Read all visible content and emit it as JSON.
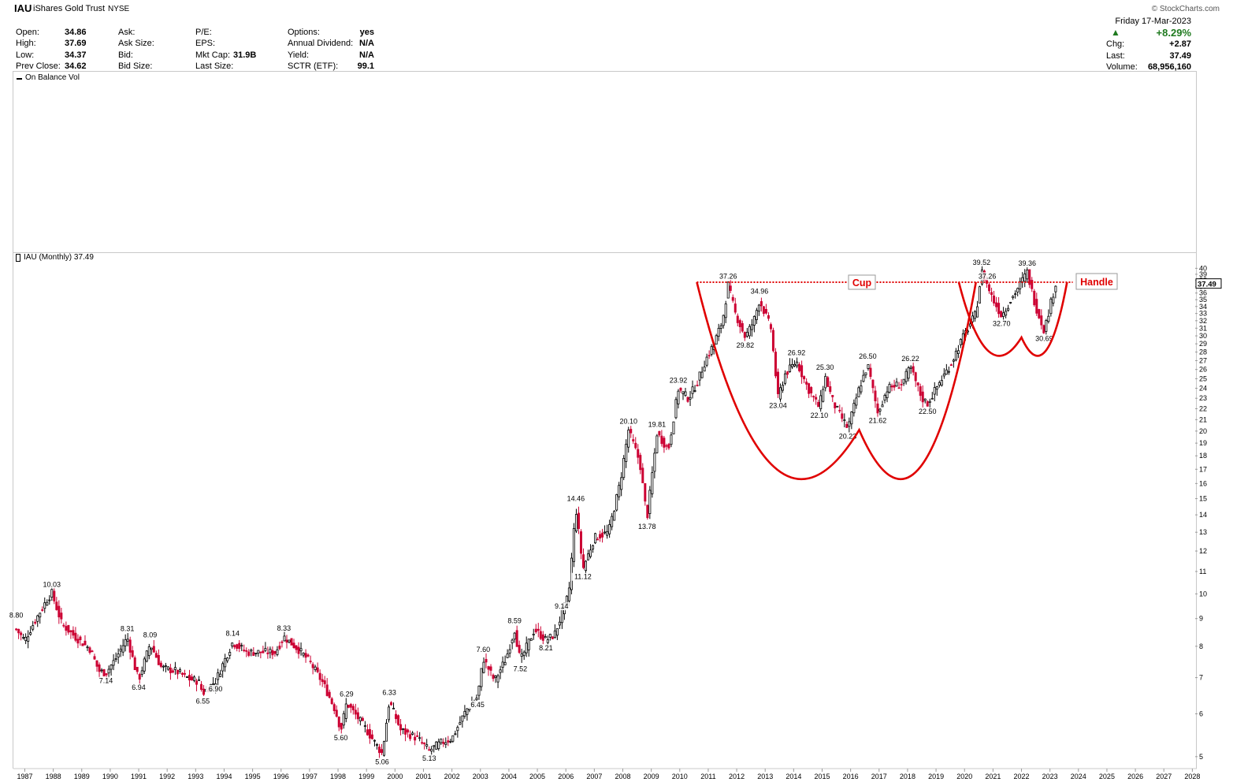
{
  "header": {
    "ticker": "IAU",
    "name": "iShares Gold Trust",
    "exchange": "NYSE",
    "watermark": "© StockCharts.com"
  },
  "quote": {
    "open_label": "Open:",
    "open": "34.86",
    "high_label": "High:",
    "high": "37.69",
    "low_label": "Low:",
    "low": "34.37",
    "prev_label": "Prev Close:",
    "prev": "34.62",
    "ask_label": "Ask:",
    "ask_size_label": "Ask Size:",
    "bid_label": "Bid:",
    "bid_size_label": "Bid Size:",
    "pe_label": "P/E:",
    "eps_label": "EPS:",
    "mktcap_label": "Mkt Cap:",
    "mktcap": "31.9B",
    "lastsize_label": "Last Size:",
    "options_label": "Options:",
    "options": "yes",
    "div_label": "Annual Dividend:",
    "div": "N/A",
    "yield_label": "Yield:",
    "yield": "N/A",
    "sctr_label": "SCTR (ETF):",
    "sctr": "99.1",
    "date": "Friday  17-Mar-2023",
    "pct": "+8.29%",
    "chg_label": "Chg:",
    "chg": "+2.87",
    "last_label": "Last:",
    "last": "37.49",
    "vol_label": "Volume:",
    "vol": "68,956,160"
  },
  "obv_label": "On Balance Vol",
  "price_label": "IAU (Monthly) 37.49",
  "colors": {
    "up": "#000000",
    "down": "#cc0033",
    "pattern": "#e00000",
    "up_arrow": "#1f7a1f"
  },
  "chart_data": {
    "type": "candlestick",
    "title": "IAU (Monthly) 37.49",
    "y_scale": "log",
    "ylim": [
      4.8,
      41
    ],
    "y_ticks": [
      5,
      6,
      7,
      8,
      9,
      10,
      11,
      12,
      13,
      14,
      15,
      16,
      17,
      18,
      19,
      20,
      21,
      22,
      23,
      24,
      25,
      26,
      27,
      28,
      29,
      30,
      31,
      32,
      33,
      34,
      35,
      36,
      37,
      38,
      39,
      40
    ],
    "last_price_tag": "37.49",
    "xlim": [
      1986.6,
      2028.1
    ],
    "x_ticks": [
      "1987",
      "1988",
      "1989",
      "1990",
      "1991",
      "1992",
      "1993",
      "1994",
      "1995",
      "1996",
      "1997",
      "1998",
      "1999",
      "2000",
      "2001",
      "2002",
      "2003",
      "2004",
      "2005",
      "2006",
      "2007",
      "2008",
      "2009",
      "2010",
      "2011",
      "2012",
      "2013",
      "2014",
      "2015",
      "2016",
      "2017",
      "2018",
      "2019",
      "2020",
      "2021",
      "2022",
      "2023",
      "2024",
      "2025",
      "2026",
      "2027",
      "2028"
    ],
    "price_path": [
      [
        1986.7,
        8.6
      ],
      [
        1987.0,
        8.2
      ],
      [
        1987.4,
        9.0
      ],
      [
        1987.8,
        9.8
      ],
      [
        1987.95,
        10.03
      ],
      [
        1988.3,
        8.8
      ],
      [
        1988.8,
        8.3
      ],
      [
        1989.3,
        7.9
      ],
      [
        1989.6,
        7.2
      ],
      [
        1989.85,
        7.14
      ],
      [
        1990.2,
        7.6
      ],
      [
        1990.6,
        8.31
      ],
      [
        1990.9,
        7.2
      ],
      [
        1991.0,
        6.94
      ],
      [
        1991.4,
        8.09
      ],
      [
        1991.8,
        7.3
      ],
      [
        1992.3,
        7.2
      ],
      [
        1992.8,
        6.95
      ],
      [
        1993.1,
        6.9
      ],
      [
        1993.25,
        6.55
      ],
      [
        1993.7,
        6.9
      ],
      [
        1994.0,
        7.5
      ],
      [
        1994.3,
        8.14
      ],
      [
        1994.8,
        7.8
      ],
      [
        1995.4,
        7.8
      ],
      [
        1995.8,
        7.8
      ],
      [
        1996.1,
        8.33
      ],
      [
        1996.6,
        7.9
      ],
      [
        1997.0,
        7.5
      ],
      [
        1997.5,
        6.8
      ],
      [
        1997.9,
        6.1
      ],
      [
        1998.1,
        5.6
      ],
      [
        1998.3,
        6.29
      ],
      [
        1998.8,
        5.8
      ],
      [
        1999.1,
        5.5
      ],
      [
        1999.55,
        5.06
      ],
      [
        1999.8,
        6.33
      ],
      [
        2000.2,
        5.6
      ],
      [
        2000.8,
        5.4
      ],
      [
        2001.2,
        5.13
      ],
      [
        2001.6,
        5.3
      ],
      [
        2002.0,
        5.4
      ],
      [
        2002.5,
        6.1
      ],
      [
        2002.9,
        6.45
      ],
      [
        2003.1,
        7.6
      ],
      [
        2003.5,
        6.9
      ],
      [
        2003.9,
        7.6
      ],
      [
        2004.2,
        8.59
      ],
      [
        2004.4,
        7.52
      ],
      [
        2004.9,
        8.6
      ],
      [
        2005.3,
        8.21
      ],
      [
        2005.6,
        8.4
      ],
      [
        2005.85,
        9.14
      ],
      [
        2006.1,
        10.0
      ],
      [
        2006.35,
        14.46
      ],
      [
        2006.6,
        11.12
      ],
      [
        2007.0,
        12.7
      ],
      [
        2007.5,
        13.0
      ],
      [
        2007.9,
        16.0
      ],
      [
        2008.2,
        20.1
      ],
      [
        2008.6,
        17.5
      ],
      [
        2008.85,
        13.78
      ],
      [
        2009.2,
        19.81
      ],
      [
        2009.6,
        18.5
      ],
      [
        2009.95,
        23.92
      ],
      [
        2010.3,
        23.0
      ],
      [
        2010.6,
        24.5
      ],
      [
        2010.9,
        27.0
      ],
      [
        2011.2,
        29.0
      ],
      [
        2011.5,
        32.0
      ],
      [
        2011.7,
        37.26
      ],
      [
        2011.95,
        33.0
      ],
      [
        2012.3,
        29.82
      ],
      [
        2012.6,
        32.0
      ],
      [
        2012.8,
        34.96
      ],
      [
        2013.2,
        31.0
      ],
      [
        2013.45,
        23.04
      ],
      [
        2013.7,
        25.5
      ],
      [
        2014.1,
        26.92
      ],
      [
        2014.5,
        24.0
      ],
      [
        2014.9,
        22.1
      ],
      [
        2015.1,
        25.3
      ],
      [
        2015.4,
        22.5
      ],
      [
        2015.9,
        20.23
      ],
      [
        2016.3,
        24.0
      ],
      [
        2016.6,
        26.5
      ],
      [
        2016.95,
        21.62
      ],
      [
        2017.3,
        24.0
      ],
      [
        2017.8,
        24.5
      ],
      [
        2018.1,
        26.22
      ],
      [
        2018.5,
        23.0
      ],
      [
        2018.7,
        22.5
      ],
      [
        2019.1,
        24.5
      ],
      [
        2019.5,
        26.5
      ],
      [
        2019.9,
        29.5
      ],
      [
        2020.4,
        33.0
      ],
      [
        2020.6,
        39.52
      ],
      [
        2020.8,
        37.26
      ],
      [
        2021.0,
        35.0
      ],
      [
        2021.3,
        32.7
      ],
      [
        2021.7,
        35.5
      ],
      [
        2022.2,
        39.36
      ],
      [
        2022.5,
        34.0
      ],
      [
        2022.8,
        30.69
      ],
      [
        2023.0,
        34.0
      ],
      [
        2023.2,
        37.49
      ]
    ],
    "annotations": [
      {
        "label": "37.26",
        "x": 2011.7,
        "y": 37.26,
        "pos": "above"
      },
      {
        "label": "34.96",
        "x": 2012.8,
        "y": 34.96,
        "pos": "above"
      },
      {
        "label": "29.82",
        "x": 2012.3,
        "y": 29.82,
        "pos": "below"
      },
      {
        "label": "23.92",
        "x": 2009.95,
        "y": 23.92,
        "pos": "above"
      },
      {
        "label": "20.10",
        "x": 2008.2,
        "y": 20.1,
        "pos": "above"
      },
      {
        "label": "19.81",
        "x": 2009.2,
        "y": 19.81,
        "pos": "above"
      },
      {
        "label": "13.78",
        "x": 2008.85,
        "y": 13.78,
        "pos": "below"
      },
      {
        "label": "14.46",
        "x": 2006.35,
        "y": 14.46,
        "pos": "above"
      },
      {
        "label": "11.12",
        "x": 2006.6,
        "y": 11.12,
        "pos": "below"
      },
      {
        "label": "9.14",
        "x": 2005.85,
        "y": 9.14,
        "pos": "above"
      },
      {
        "label": "8.21",
        "x": 2005.3,
        "y": 8.21,
        "pos": "below"
      },
      {
        "label": "8.59",
        "x": 2004.2,
        "y": 8.59,
        "pos": "above"
      },
      {
        "label": "7.52",
        "x": 2004.4,
        "y": 7.52,
        "pos": "below"
      },
      {
        "label": "7.60",
        "x": 2003.1,
        "y": 7.6,
        "pos": "above"
      },
      {
        "label": "6.45",
        "x": 2002.9,
        "y": 6.45,
        "pos": "below"
      },
      {
        "label": "6.33",
        "x": 1999.8,
        "y": 6.33,
        "pos": "above"
      },
      {
        "label": "5.13",
        "x": 2001.2,
        "y": 5.13,
        "pos": "below"
      },
      {
        "label": "5.06",
        "x": 1999.55,
        "y": 5.06,
        "pos": "below"
      },
      {
        "label": "6.29",
        "x": 1998.3,
        "y": 6.29,
        "pos": "above"
      },
      {
        "label": "5.60",
        "x": 1998.1,
        "y": 5.6,
        "pos": "below"
      },
      {
        "label": "8.33",
        "x": 1996.1,
        "y": 8.33,
        "pos": "above"
      },
      {
        "label": "8.14",
        "x": 1994.3,
        "y": 8.14,
        "pos": "above"
      },
      {
        "label": "6.90",
        "x": 1993.7,
        "y": 6.9,
        "pos": "below"
      },
      {
        "label": "6.55",
        "x": 1993.25,
        "y": 6.55,
        "pos": "below"
      },
      {
        "label": "8.09",
        "x": 1991.4,
        "y": 8.09,
        "pos": "above"
      },
      {
        "label": "8.31",
        "x": 1990.6,
        "y": 8.31,
        "pos": "above"
      },
      {
        "label": "7.14",
        "x": 1989.85,
        "y": 7.14,
        "pos": "below"
      },
      {
        "label": "6.94",
        "x": 1991.0,
        "y": 6.94,
        "pos": "below"
      },
      {
        "label": "10.03",
        "x": 1987.95,
        "y": 10.03,
        "pos": "above"
      },
      {
        "label": "8.80",
        "x": 1986.7,
        "y": 8.8,
        "pos": "above"
      },
      {
        "label": "23.04",
        "x": 2013.45,
        "y": 23.04,
        "pos": "below"
      },
      {
        "label": "26.92",
        "x": 2014.1,
        "y": 26.92,
        "pos": "above"
      },
      {
        "label": "25.30",
        "x": 2015.1,
        "y": 25.3,
        "pos": "above"
      },
      {
        "label": "22.10",
        "x": 2014.9,
        "y": 22.1,
        "pos": "below"
      },
      {
        "label": "20.23",
        "x": 2015.9,
        "y": 20.23,
        "pos": "below"
      },
      {
        "label": "26.50",
        "x": 2016.6,
        "y": 26.5,
        "pos": "above"
      },
      {
        "label": "21.62",
        "x": 2016.95,
        "y": 21.62,
        "pos": "below"
      },
      {
        "label": "26.22",
        "x": 2018.1,
        "y": 26.22,
        "pos": "above"
      },
      {
        "label": "22.50",
        "x": 2018.7,
        "y": 22.5,
        "pos": "below"
      },
      {
        "label": "39.52",
        "x": 2020.6,
        "y": 39.52,
        "pos": "above"
      },
      {
        "label": "37.26",
        "x": 2020.8,
        "y": 37.26,
        "pos": "above"
      },
      {
        "label": "32.70",
        "x": 2021.3,
        "y": 32.7,
        "pos": "below"
      },
      {
        "label": "39.36",
        "x": 2022.2,
        "y": 39.36,
        "pos": "above"
      },
      {
        "label": "30.69",
        "x": 2022.8,
        "y": 30.69,
        "pos": "below"
      }
    ],
    "pattern_labels": {
      "cup": "Cup",
      "handle": "Handle"
    },
    "resistance_level": 37.7,
    "cup": {
      "x_start": 2010.6,
      "x_end": 2020.4,
      "bottom_x": 2016.3,
      "bottom_y": 20.1,
      "rim_y": 37.7
    },
    "handle": {
      "x_start": 2019.8,
      "x_end": 2023.6,
      "bottom_x": 2022.0,
      "bottom_y": 29.8,
      "rim_y": 37.7
    }
  }
}
